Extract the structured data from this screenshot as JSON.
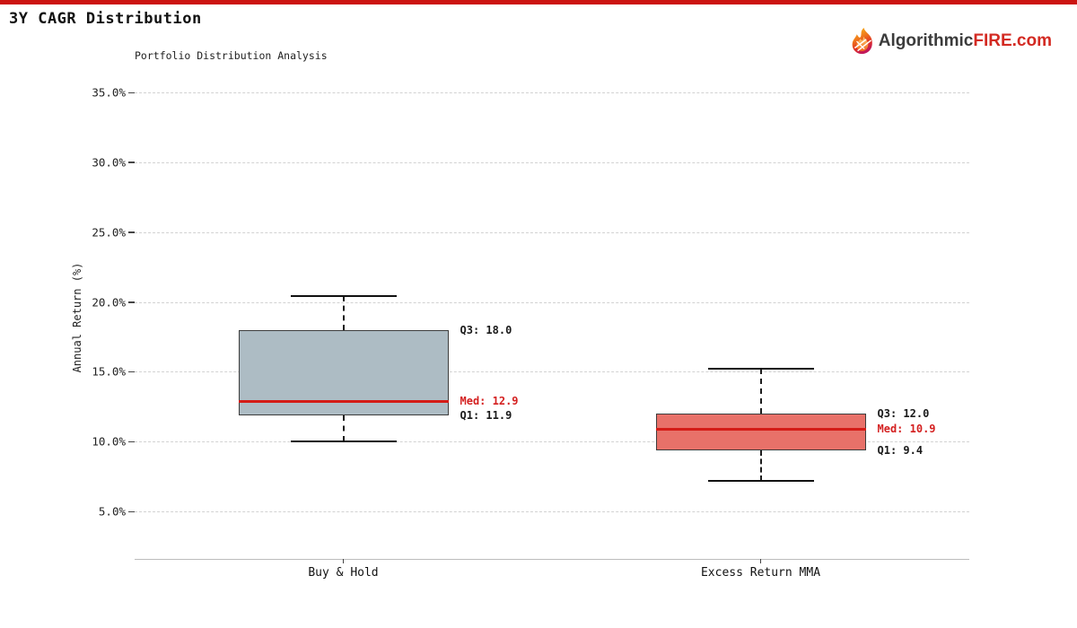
{
  "page": {
    "topbar_color": "#cc1411"
  },
  "header": {
    "title": "3Y CAGR Distribution"
  },
  "logo": {
    "icon": "flame-icon",
    "prefix": "Algorithmic",
    "highlight": "FIRE",
    "suffix": ".com",
    "prefix_color": "#3b3b3b",
    "highlight_color": "#d32a22"
  },
  "chart_data": {
    "type": "boxplot",
    "title": "Portfolio Distribution Analysis",
    "xlabel": "",
    "ylabel": "Annual Return (%)",
    "ylim": [
      1.6,
      36.2
    ],
    "grid": true,
    "legend": "none",
    "yticks": [
      {
        "value": 5,
        "label": "5.0%"
      },
      {
        "value": 10,
        "label": "10.0%"
      },
      {
        "value": 15,
        "label": "15.0%"
      },
      {
        "value": 20,
        "label": "20.0%"
      },
      {
        "value": 25,
        "label": "25.0%"
      },
      {
        "value": 30,
        "label": "30.0%"
      },
      {
        "value": 35,
        "label": "35.0%"
      }
    ],
    "categories": [
      "Buy & Hold",
      "Excess Return MMA"
    ],
    "boxes": [
      {
        "category": "Buy & Hold",
        "q1": 11.9,
        "median": 12.9,
        "q3": 18.0,
        "whisker_low": 10.0,
        "whisker_high": 20.4,
        "fill_color": "#adbcc4",
        "labels": {
          "q3": "Q3: 18.0",
          "median": "Med: 12.9",
          "q1": "Q1: 11.9"
        }
      },
      {
        "category": "Excess Return MMA",
        "q1": 9.4,
        "median": 10.9,
        "q3": 12.0,
        "whisker_low": 7.2,
        "whisker_high": 15.2,
        "fill_color": "#e87169",
        "labels": {
          "q3": "Q3: 12.0",
          "median": "Med: 10.9",
          "q1": "Q1: 9.4"
        }
      }
    ],
    "median_color": "#d41c17",
    "annotation_color": "#1a1a1a",
    "annotation_median_color": "#d42020"
  }
}
